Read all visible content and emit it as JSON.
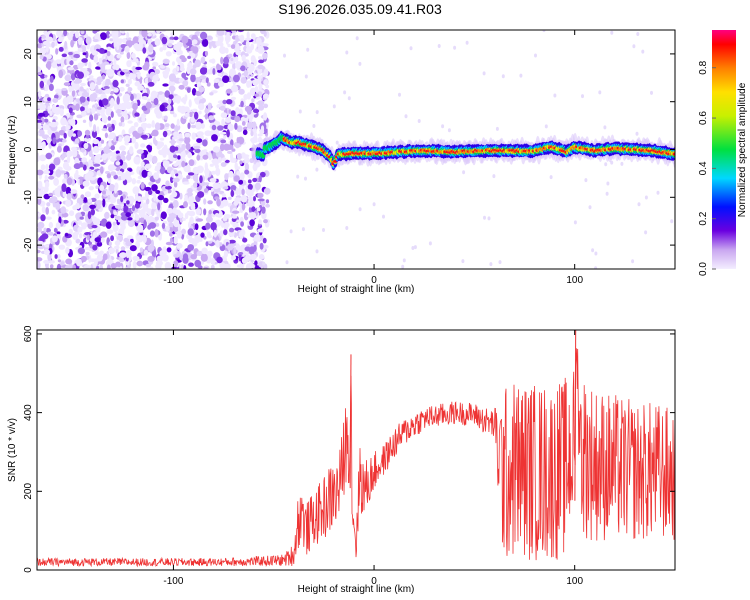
{
  "figure": {
    "title": "S196.2026.035.09.41.R03"
  },
  "chart_data": [
    {
      "type": "heatmap",
      "xlabel": "Height of straight line (km)",
      "ylabel": "Frequency (Hz)",
      "xlim": [
        -168,
        150
      ],
      "ylim": [
        -25,
        25
      ],
      "xticks": [
        -100,
        0,
        100
      ],
      "yticks": [
        -20,
        -10,
        0,
        10,
        20
      ],
      "colorbar": {
        "label": "Normalized spectral amplitude",
        "range": [
          0,
          0.95
        ],
        "ticks": [
          0.0,
          0.2,
          0.4,
          0.6,
          0.8
        ],
        "colormap": "rainbow"
      },
      "noise_region": {
        "x": [
          -168,
          -55
        ],
        "y": [
          -25,
          25
        ]
      },
      "ridge": {
        "x": [
          -55,
          -50,
          -46,
          -42,
          -38,
          -34,
          -30,
          -26,
          -22,
          -20,
          -18,
          -15,
          -10,
          0,
          10,
          20,
          30,
          40,
          50,
          60,
          70,
          80,
          88,
          93,
          96,
          100,
          110,
          120,
          130,
          140,
          150
        ],
        "y": [
          0,
          1,
          2.5,
          1.5,
          1.5,
          1,
          0.5,
          0,
          -1.5,
          -3,
          -1,
          -1,
          -0.8,
          -0.8,
          -0.6,
          -0.3,
          -0.3,
          -0.5,
          -0.3,
          -0.2,
          -0.3,
          -0.3,
          0.5,
          0,
          -0.5,
          0.5,
          -0.2,
          0.2,
          0,
          -0.3,
          -1
        ]
      },
      "grid": false
    },
    {
      "type": "line",
      "xlabel": "Height of straight line (km)",
      "ylabel": "SNR (10 * v/v)",
      "xlim": [
        -168,
        150
      ],
      "ylim": [
        0,
        610
      ],
      "xticks": [
        -100,
        0,
        100
      ],
      "yticks": [
        0,
        200,
        400,
        600
      ],
      "color": "#ee3333",
      "grid": false,
      "series": [
        {
          "x": [
            -168,
            -140,
            -110,
            -80,
            -60,
            -45,
            -40,
            -38,
            -36,
            -34,
            -30,
            -26,
            -22,
            -18,
            -16,
            -14,
            -12,
            -11.5,
            -11,
            -10,
            -9,
            -7,
            -5,
            -2,
            0,
            5,
            10,
            15,
            20,
            25,
            30,
            40,
            50,
            55,
            60,
            62,
            64,
            66,
            70,
            80,
            90,
            95,
            98,
            100,
            101,
            103,
            110,
            120,
            130,
            140,
            150
          ],
          "y": [
            20,
            20,
            20,
            20,
            22,
            25,
            40,
            120,
            150,
            100,
            130,
            150,
            180,
            200,
            250,
            330,
            320,
            520,
            200,
            120,
            60,
            250,
            200,
            230,
            250,
            280,
            320,
            350,
            370,
            385,
            390,
            400,
            395,
            380,
            370,
            300,
            250,
            240,
            260,
            250,
            250,
            260,
            300,
            320,
            560,
            300,
            270,
            260,
            250,
            250,
            240
          ],
          "spread": [
            10,
            10,
            10,
            10,
            12,
            15,
            30,
            70,
            80,
            70,
            70,
            80,
            90,
            90,
            100,
            110,
            100,
            60,
            100,
            60,
            40,
            100,
            80,
            60,
            50,
            40,
            40,
            35,
            35,
            30,
            30,
            30,
            30,
            35,
            40,
            150,
            220,
            230,
            230,
            230,
            230,
            230,
            220,
            200,
            60,
            220,
            200,
            190,
            180,
            180,
            170
          ]
        }
      ]
    }
  ]
}
